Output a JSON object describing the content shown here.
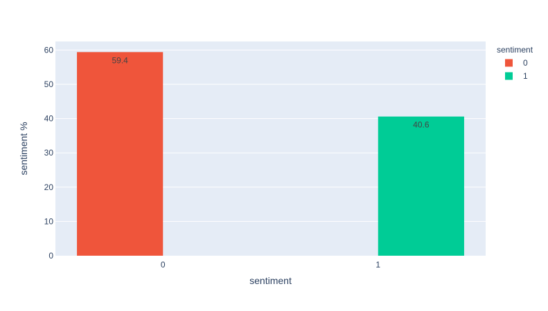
{
  "chart_data": {
    "type": "bar",
    "title": "",
    "xlabel": "sentiment",
    "ylabel": "sentiment %",
    "categories": [
      "0",
      "1"
    ],
    "ylim": [
      0,
      62.5
    ],
    "yticks": [
      0,
      10,
      20,
      30,
      40,
      50,
      60
    ],
    "grid": true,
    "legend": {
      "title": "sentiment",
      "placement": "right"
    },
    "series": [
      {
        "name": "0",
        "category": "0",
        "value": 59.4,
        "label": "59.4",
        "color": "#EF553B"
      },
      {
        "name": "1",
        "category": "1",
        "value": 40.6,
        "label": "40.6",
        "color": "#00CC96"
      }
    ],
    "colors": {
      "plot_background": "#E5ECF6",
      "grid": "#ffffff",
      "text": "#2a3f5f"
    }
  }
}
